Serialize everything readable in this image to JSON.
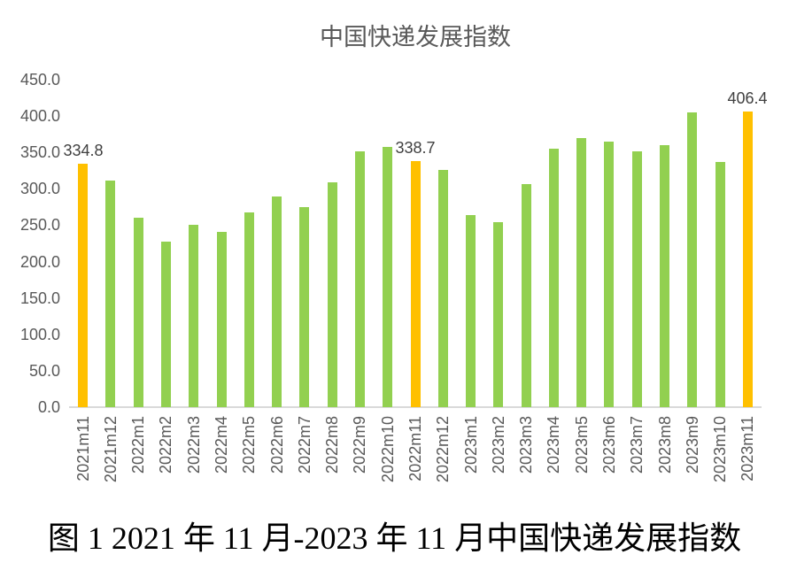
{
  "caption": {
    "text": "图 1 2021 年 11 月-2023 年 11 月中国快递发展指数"
  },
  "chart_data": {
    "type": "bar",
    "title": "中国快递发展指数",
    "categories": [
      "2021m11",
      "2021m12",
      "2022m1",
      "2022m2",
      "2022m3",
      "2022m4",
      "2022m5",
      "2022m6",
      "2022m7",
      "2022m8",
      "2022m9",
      "2022m10",
      "2022m11",
      "2022m12",
      "2023m1",
      "2023m2",
      "2023m3",
      "2023m4",
      "2023m5",
      "2023m6",
      "2023m7",
      "2023m8",
      "2023m9",
      "2023m10",
      "2023m11"
    ],
    "values": [
      334.8,
      311,
      260,
      228,
      250,
      241,
      268,
      289,
      275,
      309,
      352,
      357,
      338.7,
      326,
      264,
      254,
      307,
      355,
      370,
      365,
      351,
      360,
      405,
      337,
      406.4
    ],
    "highlighted_categories": [
      "2021m11",
      "2022m11",
      "2023m11"
    ],
    "data_labels": {
      "2021m11": "334.8",
      "2022m11": "338.7",
      "2023m11": "406.4"
    },
    "y_ticks": [
      "450.0",
      "400.0",
      "350.0",
      "300.0",
      "250.0",
      "200.0",
      "150.0",
      "100.0",
      "50.0",
      "0.0"
    ],
    "ylim": [
      0,
      450
    ],
    "xlabel": "",
    "ylabel": "",
    "grid": false,
    "legend": "none",
    "colors": {
      "bar_default": "#92D050",
      "bar_highlight": "#FFC000",
      "tick_text": "#595959",
      "data_label_text": "#404040",
      "title_text": "#595959",
      "axis_line": "#D9D9D9",
      "caption_text": "#000000",
      "background": "#FFFFFF"
    }
  }
}
